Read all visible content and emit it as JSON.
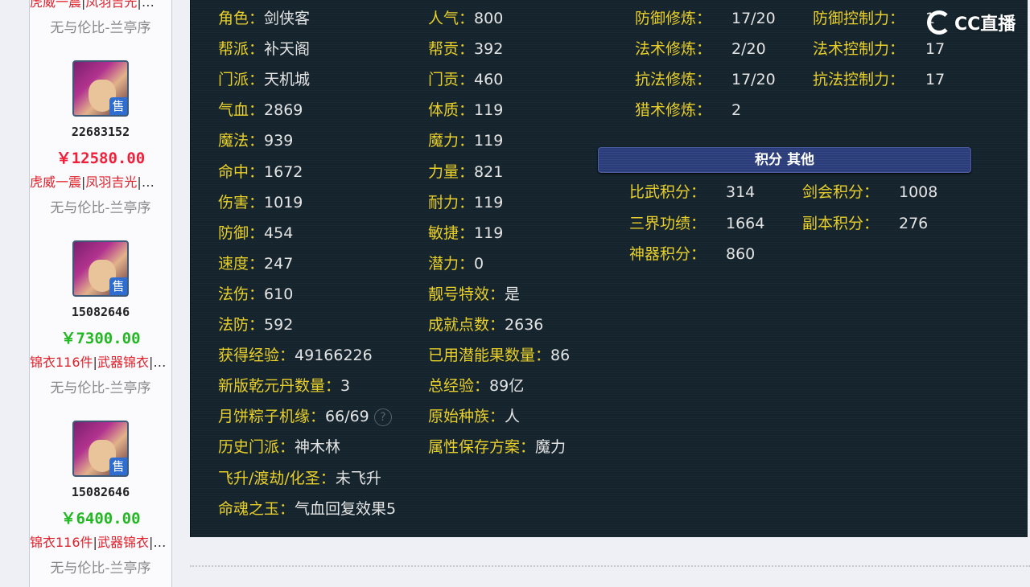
{
  "sidebar": {
    "items": [
      {
        "id": "",
        "price": "",
        "tags": [
          "虎威一震",
          "凤羽吉光"
        ],
        "seller": "无与伦比-兰亭序"
      },
      {
        "id": "22683152",
        "price": "￥12580.00",
        "price_color": "#f0203a",
        "tags": [
          "虎威一震",
          "凤羽吉光"
        ],
        "seller": "无与伦比-兰亭序"
      },
      {
        "id": "15082646",
        "price": "￥7300.00",
        "price_color": "#22b822",
        "tags": [
          "锦衣116件",
          "武器锦衣"
        ],
        "seller": "无与伦比-兰亭序"
      },
      {
        "id": "15082646",
        "price": "￥6400.00",
        "price_color": "#22b822",
        "tags": [
          "锦衣116件",
          "武器锦衣"
        ],
        "seller": "无与伦比-兰亭序"
      }
    ],
    "sale_badge": "售",
    "more": "…"
  },
  "stats": {
    "col1": [
      {
        "label": "角色：",
        "value": "剑侠客"
      },
      {
        "label": "帮派：",
        "value": "补天阁"
      },
      {
        "label": "门派：",
        "value": "天机城"
      },
      {
        "label": "气血：",
        "value": "2869"
      },
      {
        "label": "魔法：",
        "value": "939"
      },
      {
        "label": "命中：",
        "value": "1672"
      },
      {
        "label": "伤害：",
        "value": "1019"
      },
      {
        "label": "防御：",
        "value": "454"
      },
      {
        "label": "速度：",
        "value": "247"
      },
      {
        "label": "法伤：",
        "value": "610"
      },
      {
        "label": "法防：",
        "value": "592"
      },
      {
        "label": "获得经验：",
        "value": "49166226"
      },
      {
        "label": "新版乾元丹数量：",
        "value": "3"
      },
      {
        "label": "月饼粽子机缘：",
        "value": "66/69"
      },
      {
        "label": "历史门派：",
        "value": "神木林"
      },
      {
        "label": "飞升/渡劫/化圣：",
        "value": "未飞升"
      },
      {
        "label": "命魂之玉：",
        "value": "气血回复效果5"
      }
    ],
    "col2": [
      {
        "label": "人气：",
        "value": "800"
      },
      {
        "label": "帮贡：",
        "value": "392"
      },
      {
        "label": "门贡：",
        "value": "460"
      },
      {
        "label": "体质：",
        "value": "119"
      },
      {
        "label": "魔力：",
        "value": "119"
      },
      {
        "label": "力量：",
        "value": "821"
      },
      {
        "label": "耐力：",
        "value": "119"
      },
      {
        "label": "敏捷：",
        "value": "119"
      },
      {
        "label": "潜力：",
        "value": "0"
      },
      {
        "label": "靓号特效：",
        "value": "是"
      },
      {
        "label": "成就点数：",
        "value": "2636"
      },
      {
        "label": "已用潜能果数量：",
        "value": "86"
      },
      {
        "label": "总经验：",
        "value": "89亿"
      },
      {
        "label": "原始种族：",
        "value": "人"
      },
      {
        "label": "属性保存方案：",
        "value": "魔力"
      }
    ],
    "help_icon": "?"
  },
  "cultivation": {
    "col1": [
      {
        "label": "防御修炼：",
        "value": "17/20"
      },
      {
        "label": "法术修炼：",
        "value": "2/20"
      },
      {
        "label": "抗法修炼：",
        "value": "17/20"
      },
      {
        "label": "猎术修炼：",
        "value": "2"
      }
    ],
    "col2": [
      {
        "label": "防御控制力：",
        "value": "1"
      },
      {
        "label": "法术控制力：",
        "value": "17"
      },
      {
        "label": "抗法控制力：",
        "value": "17"
      }
    ]
  },
  "points": {
    "title": "积分 其他",
    "col1": [
      {
        "label": "比武积分：",
        "value": "314"
      },
      {
        "label": "三界功绩：",
        "value": "1664"
      },
      {
        "label": "神器积分：",
        "value": "860"
      }
    ],
    "col2": [
      {
        "label": "剑会积分：",
        "value": "1008"
      },
      {
        "label": "副本积分：",
        "value": "276"
      }
    ]
  },
  "watermark": "CC直播"
}
